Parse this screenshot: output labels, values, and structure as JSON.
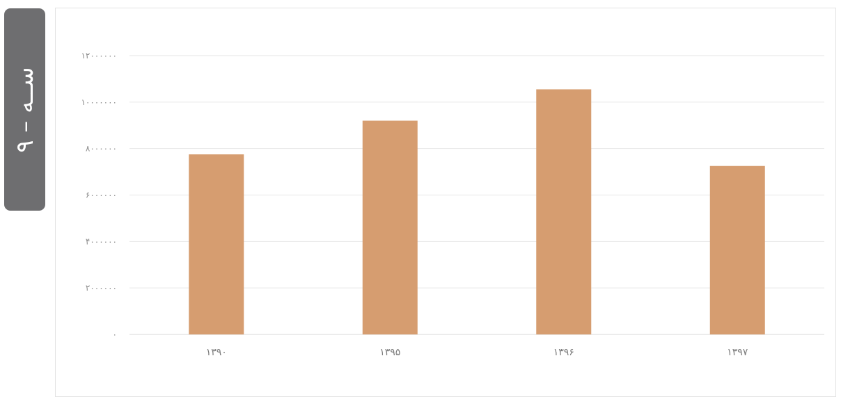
{
  "side_tab": {
    "label": "ســه – ۹"
  },
  "colors": {
    "bar": "#d69d70",
    "grid": "#e6e6e6",
    "side_tab": "#6e6e70"
  },
  "chart_data": {
    "type": "bar",
    "title": "",
    "xlabel": "",
    "ylabel": "",
    "ylim": [
      0,
      12000000
    ],
    "grid": true,
    "legend": "none",
    "categories": [
      "۱۳۹۰",
      "۱۳۹۵",
      "۱۳۹۶",
      "۱۳۹۷"
    ],
    "values": [
      7750000,
      9200000,
      10550000,
      7250000
    ],
    "y_ticks": [
      0,
      2000000,
      4000000,
      6000000,
      8000000,
      10000000,
      12000000
    ],
    "y_tick_labels": [
      "۰",
      "۲۰۰۰۰۰۰",
      "۴۰۰۰۰۰۰",
      "۶۰۰۰۰۰۰",
      "۸۰۰۰۰۰۰",
      "۱۰۰۰۰۰۰۰",
      "۱۲۰۰۰۰۰۰"
    ]
  }
}
